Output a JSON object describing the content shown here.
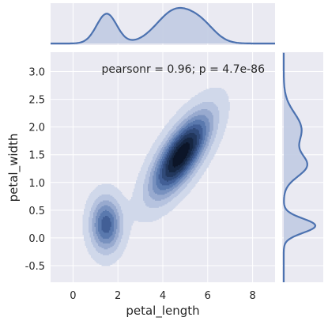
{
  "chart_data": {
    "type": "jointplot-kde",
    "x": {
      "label": "petal_length",
      "ticks": [
        0,
        2,
        4,
        6,
        8
      ],
      "range": [
        -1,
        9
      ]
    },
    "y": {
      "label": "petal_width",
      "ticks": [
        -0.5,
        0.0,
        0.5,
        1.0,
        1.5,
        2.0,
        2.5,
        3.0
      ],
      "range": [
        -0.8,
        3.35
      ]
    },
    "annotation": "pearsonr = 0.96; p = 4.7e-86",
    "grid": true,
    "clusters": [
      {
        "center_x": 1.46,
        "center_y": 0.24,
        "sd_x": 0.45,
        "sd_y": 0.32,
        "weight": 1.0
      },
      {
        "center_x": 4.8,
        "center_y": 1.5,
        "sd_x": 0.85,
        "sd_y": 0.48,
        "correlation": 0.72,
        "weight": 1.72
      }
    ],
    "marginal_x": {
      "peaks": [
        1.5,
        4.5
      ],
      "trough": 3.0
    },
    "marginal_y": {
      "peaks": [
        0.2,
        1.3,
        1.9
      ],
      "trough": 0.6
    },
    "colors": {
      "line": "#4c72b0",
      "fill": "#c1cbe2",
      "plot_bg": "#eaeaf2",
      "grid": "#ffffff",
      "levels": [
        "#d0d8ea",
        "#b6c3df",
        "#98aacf",
        "#7891bf",
        "#5a79ae",
        "#425f96",
        "#304a79",
        "#22375d",
        "#162642",
        "#0c1528"
      ]
    }
  }
}
